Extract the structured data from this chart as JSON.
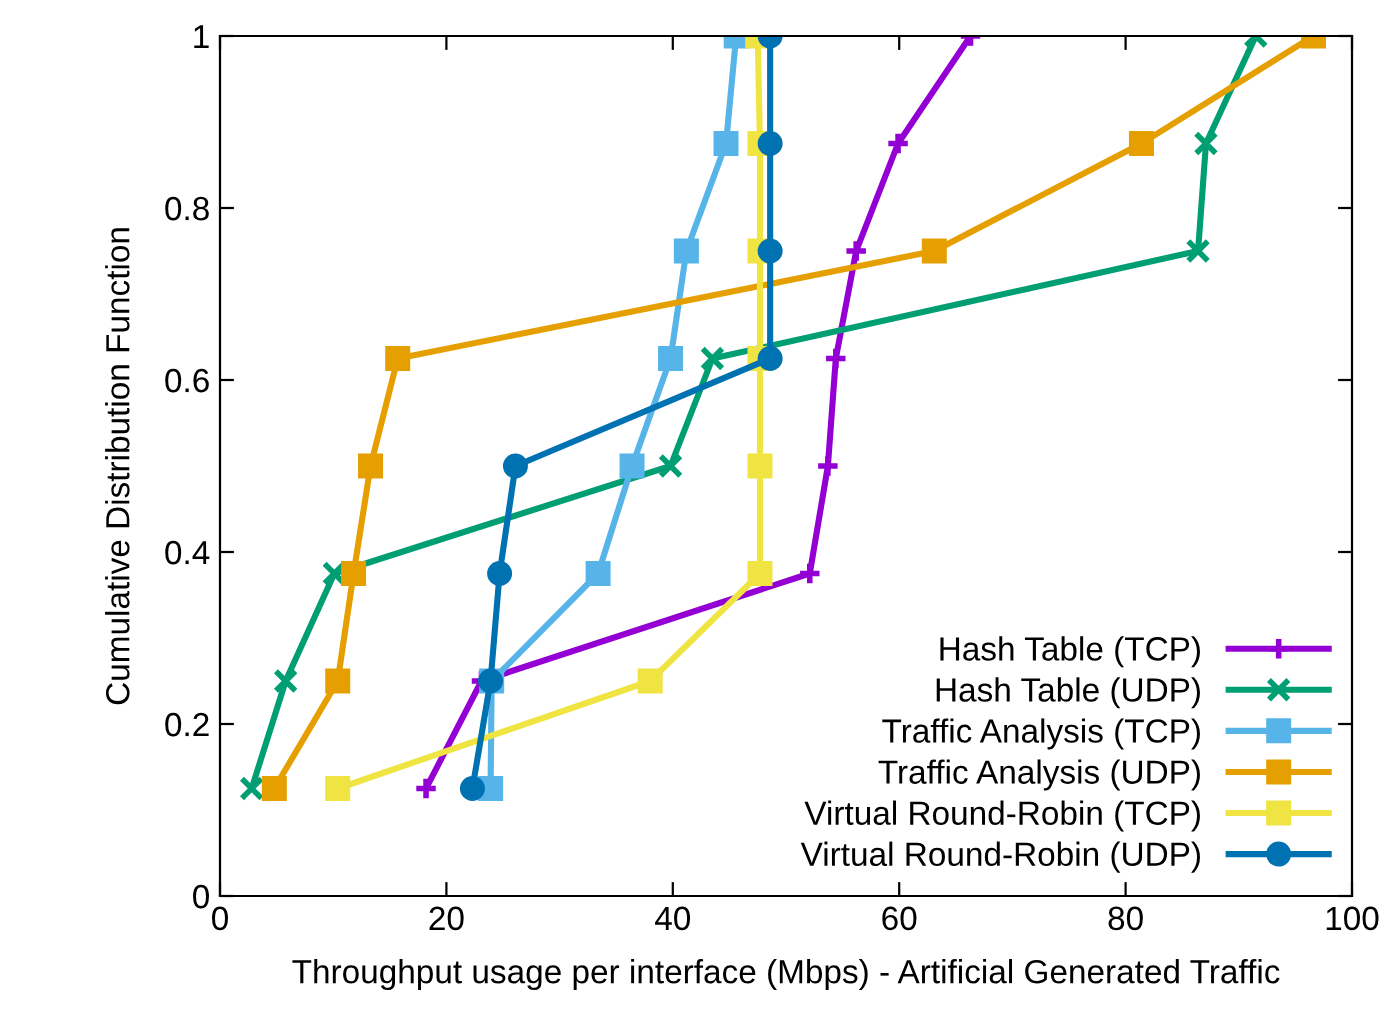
{
  "chart_data": {
    "type": "line",
    "xlabel": "Throughput usage per interface (Mbps) - Artificial Generated Traffic",
    "ylabel": "Cumulative Distribution Function",
    "xlim": [
      0,
      100
    ],
    "xticks": [
      0,
      20,
      40,
      60,
      80,
      100
    ],
    "ylim": [
      0,
      1
    ],
    "yticks": [
      0,
      0.2,
      0.4,
      0.6,
      0.8,
      1
    ],
    "grid": false,
    "legend": "bottom right",
    "line_style": "solid",
    "series": [
      {
        "name": "Hash Table (TCP)",
        "color": "#9400d3",
        "marker": "plus",
        "x": [
          18.2,
          23.1,
          52.1,
          53.7,
          54.4,
          56.2,
          59.9,
          66.3
        ],
        "values": [
          0.125,
          0.25,
          0.375,
          0.5,
          0.625,
          0.75,
          0.875,
          1
        ]
      },
      {
        "name": "Hash Table (UDP)",
        "color": "#009e73",
        "marker": "cross",
        "x": [
          2.8,
          5.8,
          10.1,
          39.8,
          43.5,
          86.4,
          87.1,
          91.5
        ],
        "values": [
          0.125,
          0.25,
          0.375,
          0.5,
          0.625,
          0.75,
          0.875,
          1
        ]
      },
      {
        "name": "Traffic Analysis (TCP)",
        "color": "#56b4e9",
        "marker": "square",
        "x": [
          23.9,
          24.0,
          33.4,
          36.4,
          39.8,
          41.2,
          44.7,
          45.6
        ],
        "values": [
          0.125,
          0.25,
          0.375,
          0.5,
          0.625,
          0.75,
          0.875,
          1
        ]
      },
      {
        "name": "Traffic Analysis (UDP)",
        "color": "#e69f00",
        "marker": "square",
        "x": [
          4.8,
          10.4,
          11.8,
          13.3,
          15.7,
          63.1,
          81.4,
          96.6
        ],
        "values": [
          0.125,
          0.25,
          0.375,
          0.5,
          0.625,
          0.75,
          0.875,
          1
        ]
      },
      {
        "name": "Virtual Round-Robin (TCP)",
        "color": "#f0e442",
        "marker": "square",
        "x": [
          10.4,
          38.0,
          47.7,
          47.7,
          47.7,
          47.7,
          47.7,
          47.5
        ],
        "values": [
          0.125,
          0.25,
          0.375,
          0.5,
          0.625,
          0.75,
          0.875,
          1
        ]
      },
      {
        "name": "Virtual Round-Robin (UDP)",
        "color": "#0072b2",
        "marker": "circle",
        "x": [
          22.3,
          23.9,
          24.7,
          26.1,
          48.6,
          48.6,
          48.6,
          48.6
        ],
        "values": [
          0.125,
          0.25,
          0.375,
          0.5,
          0.625,
          0.75,
          0.875,
          1
        ]
      }
    ]
  }
}
